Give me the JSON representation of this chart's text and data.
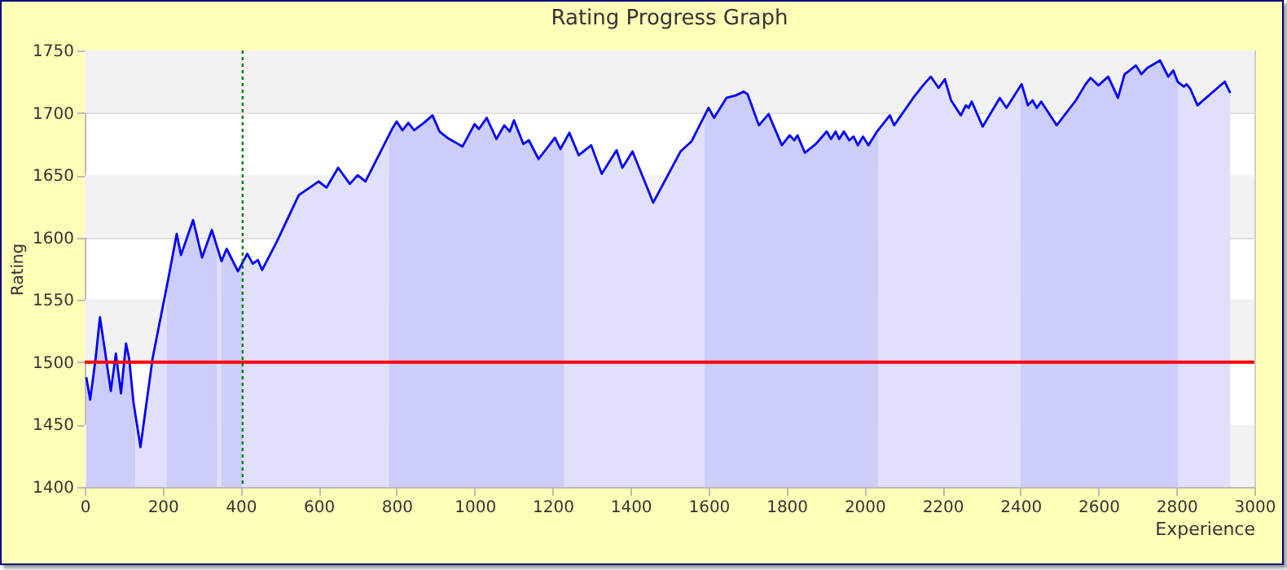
{
  "chart_data": {
    "type": "line",
    "title": "Rating Progress Graph",
    "xlabel": "Experience",
    "ylabel": "Rating",
    "xlim": [
      0,
      3000
    ],
    "xticks": [
      0,
      200,
      400,
      600,
      800,
      1000,
      1200,
      1400,
      1600,
      1800,
      2000,
      2200,
      2400,
      2600,
      2800,
      3000
    ],
    "ylim": [
      1400,
      1750
    ],
    "yticks": [
      1400,
      1450,
      1500,
      1550,
      1600,
      1650,
      1700,
      1750
    ],
    "grid": "y",
    "x": [
      4,
      14,
      28,
      39,
      53,
      67,
      80,
      93,
      106,
      114,
      125,
      143,
      174,
      215,
      236,
      247,
      278,
      301,
      326,
      351,
      364,
      393,
      417,
      431,
      444,
      455,
      493,
      549,
      600,
      620,
      650,
      680,
      700,
      720,
      790,
      800,
      815,
      830,
      845,
      870,
      892,
      910,
      930,
      958,
      969,
      1000,
      1011,
      1031,
      1056,
      1076,
      1090,
      1101,
      1125,
      1139,
      1164,
      1206,
      1220,
      1243,
      1267,
      1299,
      1326,
      1364,
      1379,
      1405,
      1458,
      1528,
      1556,
      1600,
      1614,
      1646,
      1670,
      1690,
      1700,
      1729,
      1754,
      1788,
      1808,
      1820,
      1828,
      1847,
      1875,
      1903,
      1914,
      1926,
      1935,
      1947,
      1961,
      1972,
      1983,
      1996,
      2010,
      2032,
      2065,
      2076,
      2125,
      2150,
      2170,
      2190,
      2206,
      2222,
      2247,
      2260,
      2267,
      2275,
      2303,
      2347,
      2364,
      2403,
      2419,
      2431,
      2442,
      2453,
      2493,
      2542,
      2567,
      2580,
      2600,
      2625,
      2650,
      2667,
      2680,
      2696,
      2710,
      2725,
      2758,
      2779,
      2792,
      2803,
      2819,
      2826,
      2836,
      2854,
      2924,
      2938
    ],
    "series": [
      {
        "type": "area",
        "color": "#cdcdfa",
        "x": [
          4,
          14,
          28,
          39,
          53,
          67,
          80,
          93,
          106,
          114,
          125,
          130
        ],
        "values": [
          1488,
          1470,
          1503,
          1536,
          1507,
          1477,
          1507,
          1475,
          1515,
          1503,
          1468,
          1458
        ]
      },
      {
        "type": "area",
        "color": "#e0e0fa",
        "x": [
          130,
          143,
          174,
          210
        ],
        "values": [
          1458,
          1432,
          1503,
          1560
        ]
      },
      {
        "type": "area",
        "color": "#cdcdfa",
        "x": [
          210,
          215,
          236,
          247,
          278,
          301,
          326,
          340
        ],
        "values": [
          1560,
          1568,
          1603,
          1586,
          1614,
          1584,
          1606,
          1592
        ]
      },
      {
        "type": "area",
        "color": "#e0e0fa",
        "x": [
          340,
          350
        ],
        "values": [
          1592,
          1582
        ]
      },
      {
        "type": "area",
        "color": "#cdcdfa",
        "x": [
          350,
          351,
          364,
          393,
          405
        ],
        "values": [
          1582,
          1581,
          1591,
          1573,
          1580
        ]
      },
      {
        "type": "area",
        "color": "#e0e0fa",
        "x": [
          405,
          417,
          431,
          444,
          455,
          493,
          549,
          600,
          620,
          650,
          680,
          700,
          720,
          780
        ],
        "values": [
          1580,
          1587,
          1579,
          1582,
          1574,
          1597,
          1634,
          1645,
          1640,
          1656,
          1643,
          1650,
          1645,
          1682
        ]
      },
      {
        "type": "area",
        "color": "#cdcdfa",
        "x": [
          780,
          790,
          800,
          815,
          830,
          845,
          870,
          892,
          910,
          930,
          958,
          969,
          1000,
          1011,
          1031,
          1056,
          1076,
          1090,
          1101,
          1125,
          1139,
          1164,
          1206,
          1220,
          1230
        ],
        "values": [
          1682,
          1688,
          1693,
          1686,
          1692,
          1686,
          1692,
          1698,
          1685,
          1680,
          1675,
          1673,
          1691,
          1687,
          1696,
          1679,
          1690,
          1685,
          1694,
          1675,
          1678,
          1663,
          1680,
          1671,
          1677
        ]
      },
      {
        "type": "area",
        "color": "#e0e0fa",
        "x": [
          1230,
          1243,
          1267,
          1299,
          1326,
          1364,
          1379,
          1405,
          1458,
          1528,
          1556,
          1590
        ],
        "values": [
          1677,
          1684,
          1666,
          1674,
          1651,
          1670,
          1656,
          1669,
          1628,
          1669,
          1677,
          1698
        ]
      },
      {
        "type": "area",
        "color": "#cdcdfa",
        "x": [
          1590,
          1600,
          1614,
          1646,
          1670,
          1690,
          1700,
          1729,
          1754,
          1788,
          1808,
          1820,
          1828,
          1847,
          1875,
          1903,
          1914,
          1926,
          1935,
          1947,
          1961,
          1972,
          1983,
          1996,
          2010,
          2032,
          2035
        ],
        "values": [
          1698,
          1704,
          1696,
          1712,
          1714,
          1717,
          1715,
          1690,
          1699,
          1674,
          1682,
          1678,
          1682,
          1668,
          1675,
          1685,
          1679,
          1685,
          1679,
          1685,
          1678,
          1681,
          1674,
          1681,
          1674,
          1685,
          1686
        ]
      },
      {
        "type": "area",
        "color": "#e0e0fa",
        "x": [
          2035,
          2065,
          2076,
          2125,
          2150,
          2170,
          2190,
          2206,
          2222,
          2247,
          2260,
          2267,
          2275,
          2303,
          2347,
          2364,
          2400
        ],
        "values": [
          1686,
          1698,
          1690,
          1712,
          1722,
          1729,
          1720,
          1727,
          1710,
          1698,
          1706,
          1704,
          1709,
          1689,
          1712,
          1704,
          1722
        ]
      },
      {
        "type": "area",
        "color": "#cdcdfa",
        "x": [
          2400,
          2403,
          2419,
          2431,
          2442,
          2453,
          2493,
          2542,
          2567,
          2580,
          2600,
          2625,
          2650,
          2667,
          2680,
          2696,
          2710,
          2725,
          2758,
          2779,
          2792,
          2803,
          2805
        ],
        "values": [
          1722,
          1723,
          1706,
          1710,
          1704,
          1709,
          1690,
          1710,
          1723,
          1728,
          1722,
          1729,
          1712,
          1731,
          1734,
          1738,
          1731,
          1736,
          1742,
          1729,
          1734,
          1725,
          1725
        ]
      },
      {
        "type": "area",
        "color": "#e0e0fa",
        "x": [
          2805,
          2819,
          2826,
          2836,
          2854,
          2924,
          2938
        ],
        "values": [
          1725,
          1721,
          1723,
          1719,
          1706,
          1725,
          1716
        ]
      },
      {
        "color": "#0000ff",
        "values": [
          1488,
          1470,
          1503,
          1536,
          1507,
          1477,
          1507,
          1475,
          1515,
          1503,
          1468,
          1432,
          1503,
          1568,
          1603,
          1586,
          1614,
          1584,
          1606,
          1581,
          1591,
          1573,
          1587,
          1579,
          1582,
          1574,
          1597,
          1634,
          1645,
          1640,
          1656,
          1643,
          1650,
          1645,
          1688,
          1693,
          1686,
          1692,
          1686,
          1692,
          1698,
          1685,
          1680,
          1675,
          1673,
          1691,
          1687,
          1696,
          1679,
          1690,
          1685,
          1694,
          1675,
          1678,
          1663,
          1680,
          1671,
          1684,
          1666,
          1674,
          1651,
          1670,
          1656,
          1669,
          1628,
          1669,
          1677,
          1704,
          1696,
          1712,
          1714,
          1717,
          1715,
          1690,
          1699,
          1674,
          1682,
          1678,
          1682,
          1668,
          1675,
          1685,
          1679,
          1685,
          1679,
          1685,
          1678,
          1681,
          1674,
          1681,
          1674,
          1685,
          1698,
          1690,
          1712,
          1722,
          1729,
          1720,
          1727,
          1710,
          1698,
          1706,
          1704,
          1709,
          1689,
          1712,
          1704,
          1723,
          1706,
          1710,
          1704,
          1709,
          1690,
          1710,
          1723,
          1728,
          1722,
          1729,
          1712,
          1731,
          1734,
          1738,
          1731,
          1736,
          1742,
          1729,
          1734,
          1725,
          1721,
          1723,
          1719,
          1706,
          1725,
          1716
        ]
      }
    ],
    "ref_lines": [
      {
        "axis": "y",
        "value": 1500,
        "color": "#ff0000",
        "line_style": "solid"
      },
      {
        "axis": "x",
        "value": 405,
        "color": "#008000",
        "line_style": "dotted"
      }
    ]
  }
}
